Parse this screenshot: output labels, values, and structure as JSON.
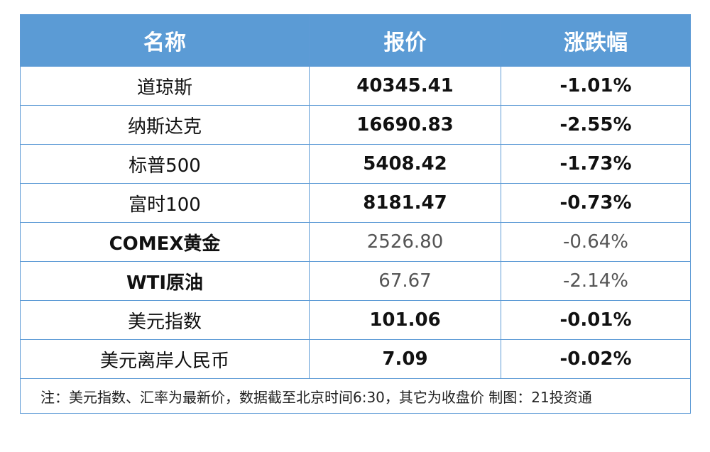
{
  "table": {
    "header": [
      "名称",
      "报价",
      "涨跌幅"
    ],
    "rows": [
      [
        "道琼斯",
        "40345.41",
        "-1.01%"
      ],
      [
        "纳斯达克",
        "16690.83",
        "-2.55%"
      ],
      [
        "标普500",
        "5408.42",
        "-1.73%"
      ],
      [
        "富时100",
        "8181.47",
        "-0.73%"
      ],
      [
        "COMEX黄金",
        "2526.80",
        "-0.64%"
      ],
      [
        "WTI原油",
        "67.67",
        "-2.14%"
      ],
      [
        "美元指数",
        "101.06",
        "-0.01%"
      ],
      [
        "美元离岸人民币",
        "7.09",
        "-0.02%"
      ]
    ],
    "note": "注：美元指数、汇率为最新价，数据截至北京时间6:30，其它为收盘价 制图：21投资通"
  }
}
